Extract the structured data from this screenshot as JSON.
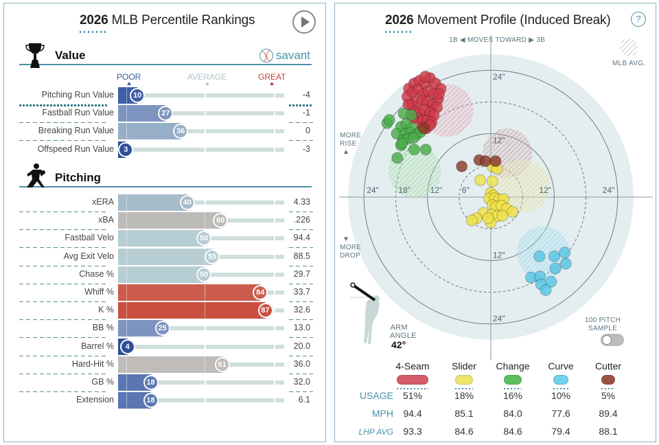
{
  "percentile_panel": {
    "title_year": "2026",
    "title_text": "MLB Percentile Rankings",
    "play_button": "play-icon",
    "scale": {
      "poor": "POOR",
      "average": "AVERAGE",
      "great": "GREAT"
    },
    "colors": {
      "poor": "#3a5ba0",
      "average": "#aec4c6",
      "great": "#c9403a"
    },
    "sections": [
      {
        "label": "Value",
        "icon": "trophy-icon",
        "logo": "savant",
        "rows": [
          {
            "name": "Pitching Run Value",
            "percentile": 10,
            "value": "-4",
            "color": "#3f5fa6"
          },
          {
            "name": "Fastball Run Value",
            "percentile": 27,
            "value": "-1",
            "color": "#7d94c0"
          },
          {
            "name": "Breaking Run Value",
            "percentile": 36,
            "value": "0",
            "color": "#97aec7"
          },
          {
            "name": "Offspeed Run Value",
            "percentile": 3,
            "value": "-3",
            "color": "#2f4f96"
          }
        ]
      },
      {
        "label": "Pitching",
        "icon": "pitcher-icon",
        "rows": [
          {
            "name": "xERA",
            "percentile": 40,
            "value": "4.33",
            "color": "#a6bccb"
          },
          {
            "name": "xBA",
            "percentile": 60,
            "value": ".226",
            "color": "#bdbbb8"
          },
          {
            "name": "Fastball Velo",
            "percentile": 50,
            "value": "94.4",
            "color": "#b6cdd3"
          },
          {
            "name": "Avg Exit Velo",
            "percentile": 55,
            "value": "88.5",
            "color": "#b6cdd3"
          },
          {
            "name": "Chase %",
            "percentile": 50,
            "value": "29.7",
            "color": "#b6cdd3"
          },
          {
            "name": "Whiff %",
            "percentile": 84,
            "value": "33.7",
            "color": "#cc5d4e"
          },
          {
            "name": "K %",
            "percentile": 87,
            "value": "32.6",
            "color": "#c9503f"
          },
          {
            "name": "BB %",
            "percentile": 25,
            "value": "13.0",
            "color": "#7d94c0"
          },
          {
            "name": "Barrel %",
            "percentile": 4,
            "value": "20.0",
            "color": "#2f4f96"
          },
          {
            "name": "Hard-Hit %",
            "percentile": 61,
            "value": "36.0",
            "color": "#c0bcb9"
          },
          {
            "name": "GB %",
            "percentile": 18,
            "value": "32.0",
            "color": "#5b77b3"
          },
          {
            "name": "Extension",
            "percentile": 18,
            "value": "6.1",
            "color": "#5b77b3"
          }
        ]
      }
    ]
  },
  "movement_panel": {
    "title_year": "2026",
    "title_text": "Movement Profile (Induced Break)",
    "help_icon": "?",
    "moves_toward": {
      "left": "1B",
      "middle": "MOVES TOWARD",
      "right": "3B"
    },
    "legend_mlb_avg": "MLB AVG.",
    "more_rise": [
      "MORE",
      "RISE"
    ],
    "more_drop": [
      "MORE",
      "DROP"
    ],
    "arm_angle_label": [
      "ARM",
      "ANGLE"
    ],
    "arm_angle_value": "42°",
    "sample_toggle_label": [
      "100 PITCH",
      "SAMPLE"
    ],
    "sample_toggle_on": false,
    "table": {
      "row_labels": [
        "USAGE",
        "MPH",
        "LHP AVG"
      ],
      "pitches": [
        {
          "name": "4-Seam",
          "color": "#d45a6a",
          "usage": "51%",
          "mph": "94.4",
          "lhp_avg": "93.3"
        },
        {
          "name": "Slider",
          "color": "#eee66a",
          "usage": "18%",
          "mph": "85.1",
          "lhp_avg": "84.6"
        },
        {
          "name": "Change",
          "color": "#5cbf5c",
          "usage": "16%",
          "mph": "84.0",
          "lhp_avg": "84.6"
        },
        {
          "name": "Curve",
          "color": "#6fd3ec",
          "usage": "10%",
          "mph": "77.6",
          "lhp_avg": "79.4"
        },
        {
          "name": "Cutter",
          "color": "#9a5444",
          "usage": "5%",
          "mph": "89.4",
          "lhp_avg": "88.1"
        }
      ]
    }
  },
  "chart_data": [
    {
      "type": "bar",
      "title": "2026 MLB Percentile Rankings",
      "orientation": "horizontal",
      "xlim": [
        0,
        100
      ],
      "categories": [
        "Pitching Run Value",
        "Fastball Run Value",
        "Breaking Run Value",
        "Offspeed Run Value",
        "xERA",
        "xBA",
        "Fastball Velo",
        "Avg Exit Velo",
        "Chase %",
        "Whiff %",
        "K %",
        "BB %",
        "Barrel %",
        "Hard-Hit %",
        "GB %",
        "Extension"
      ],
      "values": [
        10,
        27,
        36,
        3,
        40,
        60,
        50,
        55,
        50,
        84,
        87,
        25,
        4,
        61,
        18,
        18
      ],
      "stat_values": [
        "-4",
        "-1",
        "0",
        "-3",
        "4.33",
        ".226",
        "94.4",
        "88.5",
        "29.7",
        "33.7",
        "32.6",
        "13.0",
        "20.0",
        "36.0",
        "32.0",
        "6.1"
      ]
    },
    {
      "type": "scatter",
      "title": "2026 Movement Profile (Induced Break)",
      "xlabel": "Horizontal break (in), + moves toward 3B",
      "ylabel": "Induced vertical break (in), + more rise",
      "xlim": [
        -25,
        25
      ],
      "ylim": [
        -25,
        25
      ],
      "rings_solid": [
        12,
        24
      ],
      "rings_dashed": [
        6,
        18
      ],
      "ring_labels": [
        "6\"",
        "12\"",
        "18\"",
        "24\""
      ],
      "series": [
        {
          "name": "4-Seam",
          "color": "#cf3848",
          "points": [
            [
              -15.5,
              20.5
            ],
            [
              -14.5,
              21.5
            ],
            [
              -13.5,
              22
            ],
            [
              -12.5,
              21.5
            ],
            [
              -11.5,
              22.5
            ],
            [
              -10.5,
              21.5
            ],
            [
              -9.5,
              20.5
            ],
            [
              -15.8,
              19
            ],
            [
              -14.8,
              19.8
            ],
            [
              -13.8,
              20.3
            ],
            [
              -12.8,
              19.5
            ],
            [
              -11.8,
              20
            ],
            [
              -10.8,
              19.5
            ],
            [
              -10,
              18.5
            ],
            [
              -15,
              17.5
            ],
            [
              -14,
              18
            ],
            [
              -13,
              18.3
            ],
            [
              -12,
              18
            ],
            [
              -11,
              17.5
            ],
            [
              -10.2,
              17
            ],
            [
              -14.5,
              16.3
            ],
            [
              -13.5,
              16
            ],
            [
              -12.5,
              16.5
            ],
            [
              -11.5,
              16
            ],
            [
              -10.8,
              15.5
            ],
            [
              -13.8,
              14.8
            ],
            [
              -12.8,
              14.5
            ],
            [
              -12,
              14.5
            ],
            [
              -11.2,
              14.2
            ],
            [
              -13,
              13.3
            ],
            [
              -12.2,
              13
            ],
            [
              -11.5,
              13.6
            ],
            [
              -14.8,
              15
            ],
            [
              -15.6,
              17.5
            ],
            [
              -9.8,
              19.5
            ],
            [
              -12.4,
              22.8
            ]
          ]
        },
        {
          "name": "Slider",
          "color": "#f0e245",
          "points": [
            [
              0.3,
              5.8
            ],
            [
              1.2,
              5.4
            ],
            [
              -2,
              3.2
            ],
            [
              0.3,
              3.0
            ],
            [
              0,
              0.8
            ],
            [
              0.5,
              0.3
            ],
            [
              -0.3,
              -0.3
            ],
            [
              0.8,
              -0.2
            ],
            [
              1.5,
              -0.5
            ],
            [
              2.4,
              -0.4
            ],
            [
              0.3,
              -1.5
            ],
            [
              1,
              -1.8
            ],
            [
              2,
              -1.6
            ],
            [
              3,
              -2.2
            ],
            [
              4.1,
              -2.8
            ],
            [
              -1.4,
              -3
            ],
            [
              0.2,
              -3.3
            ],
            [
              1.2,
              -3.6
            ],
            [
              2.2,
              -3.5
            ],
            [
              -2.7,
              -4
            ],
            [
              -3.6,
              -4.4
            ],
            [
              0,
              -4.8
            ],
            [
              -0.5,
              -4
            ]
          ]
        },
        {
          "name": "Change",
          "color": "#4aad4a",
          "points": [
            [
              -19.6,
              14
            ],
            [
              -19.2,
              14.6
            ],
            [
              -16.5,
              15.8
            ],
            [
              -15,
              15.5
            ],
            [
              -17,
              13.3
            ],
            [
              -16,
              13.8
            ],
            [
              -15,
              13
            ],
            [
              -17.8,
              12
            ],
            [
              -16.2,
              12
            ],
            [
              -15.2,
              12.2
            ],
            [
              -14,
              11.8
            ],
            [
              -13.3,
              12.3
            ],
            [
              -16.6,
              10.8
            ],
            [
              -15.7,
              11
            ],
            [
              -14.6,
              11.2
            ],
            [
              -17,
              9.8
            ],
            [
              -14.5,
              9
            ],
            [
              -12.3,
              9
            ],
            [
              -17.7,
              7.4
            ],
            [
              -16.8,
              10.2
            ]
          ]
        },
        {
          "name": "Curve",
          "color": "#58c6e4",
          "points": [
            [
              9.2,
              -11.2
            ],
            [
              12,
              -11.2
            ],
            [
              14,
              -10.5
            ],
            [
              12.2,
              -13.5
            ],
            [
              14.2,
              -12.6
            ],
            [
              7.6,
              -15.2
            ],
            [
              9.3,
              -15
            ],
            [
              9.5,
              -16.5
            ],
            [
              11.4,
              -16
            ],
            [
              10.4,
              -17.6
            ]
          ]
        },
        {
          "name": "Cutter",
          "color": "#8b3a2a",
          "points": [
            [
              -12.7,
              13
            ],
            [
              -5.5,
              5.8
            ],
            [
              -2.2,
              7
            ],
            [
              -1,
              6.8
            ],
            [
              0.9,
              6.8
            ]
          ]
        }
      ],
      "mlb_avg": [
        {
          "name": "4-Seam",
          "center": [
            -8.3,
            16.4
          ],
          "radius": 5
        },
        {
          "name": "Change",
          "center": [
            -14.4,
            4.8
          ],
          "radius": 5
        },
        {
          "name": "Cutter",
          "center": [
            3.1,
            8.3
          ],
          "radius": 4.7
        },
        {
          "name": "Slider",
          "center": [
            6.2,
            2.1
          ],
          "radius": 5
        },
        {
          "name": "Curve",
          "center": [
            9.9,
            -10.5
          ],
          "radius": 5
        }
      ]
    }
  ]
}
